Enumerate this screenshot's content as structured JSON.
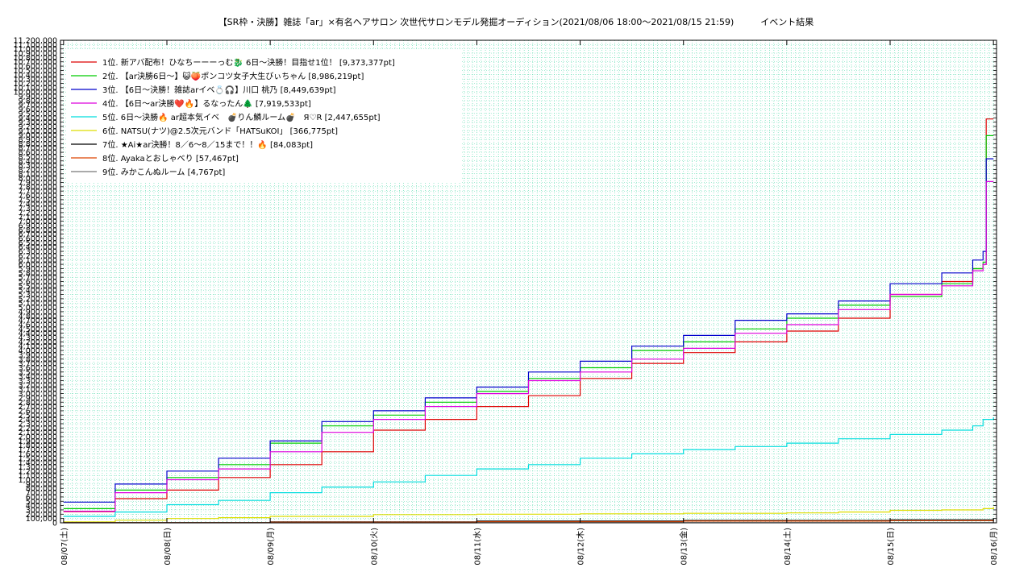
{
  "chart_data": {
    "type": "line",
    "title": "【SR枠・決勝】雑誌「ar」×有名ヘアサロン 次世代サロンモデル発掘オーディション(2021/08/06 18:00～2021/08/15 21:59)　　　イベント結果",
    "xlabel": "",
    "ylabel": "",
    "x_tick_labels": [
      "08/07(土)",
      "08/08(日)",
      "08/09(月)",
      "08/10(火)",
      "08/11(水)",
      "08/12(木)",
      "08/13(金)",
      "08/14(土)",
      "08/15(日)",
      "08/16(月)"
    ],
    "xlim": [
      -0.03,
      9.03
    ],
    "ylim": [
      0,
      11200000
    ],
    "y_tick_step": 100000,
    "grid": true,
    "legend": "top-left",
    "series": [
      {
        "name": "1位. 新アバ配布！ひなちーーーっむ🐉 6日～決勝！目指せ1位！ [9,373,377pt]",
        "color": "#dd0000",
        "points": [
          [
            0,
            260000
          ],
          [
            0.5,
            560000
          ],
          [
            1,
            760000
          ],
          [
            1.5,
            1050000
          ],
          [
            2,
            1350000
          ],
          [
            2.5,
            1650000
          ],
          [
            3,
            2150000
          ],
          [
            3.5,
            2400000
          ],
          [
            4,
            2700000
          ],
          [
            4.5,
            2950000
          ],
          [
            5,
            3350000
          ],
          [
            5.5,
            3700000
          ],
          [
            6,
            3950000
          ],
          [
            6.5,
            4200000
          ],
          [
            7,
            4450000
          ],
          [
            7.5,
            4750000
          ],
          [
            8,
            5300000
          ],
          [
            8.5,
            5600000
          ],
          [
            8.8,
            5900000
          ],
          [
            8.9,
            6000000
          ],
          [
            8.93,
            9373377
          ],
          [
            9,
            9373377
          ]
        ]
      },
      {
        "name": "2位. 【ar決勝6日〜】😺🍑ポンコツ女子大生びぃちゃん [8,986,219pt]",
        "color": "#00cc00",
        "points": [
          [
            0,
            330000
          ],
          [
            0.5,
            760000
          ],
          [
            1,
            1050000
          ],
          [
            1.5,
            1350000
          ],
          [
            2,
            1850000
          ],
          [
            2.5,
            2250000
          ],
          [
            3,
            2500000
          ],
          [
            3.5,
            2800000
          ],
          [
            4,
            3050000
          ],
          [
            4.5,
            3350000
          ],
          [
            5,
            3600000
          ],
          [
            5.5,
            4000000
          ],
          [
            6,
            4200000
          ],
          [
            6.5,
            4500000
          ],
          [
            7,
            4750000
          ],
          [
            7.5,
            5050000
          ],
          [
            8,
            5250000
          ],
          [
            8.5,
            5550000
          ],
          [
            8.8,
            5900000
          ],
          [
            8.9,
            6050000
          ],
          [
            8.93,
            8986219
          ],
          [
            9,
            8986219
          ]
        ]
      },
      {
        "name": "3位. 【6日〜決勝！雑誌arイベ💍🎧】川口 桃乃 [8,449,639pt]",
        "color": "#0000cc",
        "points": [
          [
            0,
            480000
          ],
          [
            0.5,
            900000
          ],
          [
            1,
            1200000
          ],
          [
            1.5,
            1500000
          ],
          [
            2,
            1900000
          ],
          [
            2.5,
            2350000
          ],
          [
            3,
            2600000
          ],
          [
            3.5,
            2900000
          ],
          [
            4,
            3150000
          ],
          [
            4.5,
            3500000
          ],
          [
            5,
            3750000
          ],
          [
            5.5,
            4100000
          ],
          [
            6,
            4350000
          ],
          [
            6.5,
            4700000
          ],
          [
            7,
            4850000
          ],
          [
            7.5,
            5150000
          ],
          [
            8,
            5550000
          ],
          [
            8.5,
            5800000
          ],
          [
            8.8,
            6100000
          ],
          [
            8.9,
            6300000
          ],
          [
            8.93,
            8449639
          ],
          [
            9,
            8449639
          ]
        ]
      },
      {
        "name": "4位. 【6日〜ar決勝❤️🔥】るなったん🌲 [7,919,533pt]",
        "color": "#dd00dd",
        "points": [
          [
            0,
            270000
          ],
          [
            0.5,
            700000
          ],
          [
            1,
            1000000
          ],
          [
            1.5,
            1250000
          ],
          [
            2,
            1650000
          ],
          [
            2.5,
            2100000
          ],
          [
            3,
            2400000
          ],
          [
            3.5,
            2700000
          ],
          [
            4,
            3000000
          ],
          [
            4.5,
            3300000
          ],
          [
            5,
            3500000
          ],
          [
            5.5,
            3800000
          ],
          [
            6,
            4050000
          ],
          [
            6.5,
            4400000
          ],
          [
            7,
            4600000
          ],
          [
            7.5,
            4950000
          ],
          [
            8,
            5300000
          ],
          [
            8.5,
            5500000
          ],
          [
            8.8,
            5850000
          ],
          [
            8.9,
            6000000
          ],
          [
            8.93,
            7919533
          ],
          [
            9,
            7919533
          ]
        ]
      },
      {
        "name": "5位. 6日〜決勝🔥 ar超本気イベ　💣りん鱗ルーム💣　Я♡R [2,447,655pt]",
        "color": "#00dddd",
        "points": [
          [
            0,
            150000
          ],
          [
            0.5,
            250000
          ],
          [
            1,
            420000
          ],
          [
            1.5,
            520000
          ],
          [
            2,
            700000
          ],
          [
            2.5,
            830000
          ],
          [
            3,
            950000
          ],
          [
            3.5,
            1100000
          ],
          [
            4,
            1250000
          ],
          [
            4.5,
            1350000
          ],
          [
            5,
            1500000
          ],
          [
            5.5,
            1600000
          ],
          [
            6,
            1700000
          ],
          [
            6.5,
            1770000
          ],
          [
            7,
            1850000
          ],
          [
            7.5,
            1950000
          ],
          [
            8,
            2050000
          ],
          [
            8.5,
            2150000
          ],
          [
            8.8,
            2250000
          ],
          [
            8.9,
            2400000
          ],
          [
            9,
            2447655
          ]
        ]
      },
      {
        "name": "6位. NATSU(ナツ)@2.5次元バンド「HATSuKOI」 [366,775pt]",
        "color": "#dddd00",
        "points": [
          [
            0,
            20000
          ],
          [
            0.5,
            60000
          ],
          [
            1,
            100000
          ],
          [
            1.5,
            120000
          ],
          [
            2,
            150000
          ],
          [
            3,
            190000
          ],
          [
            4,
            200000
          ],
          [
            5,
            210000
          ],
          [
            6,
            220000
          ],
          [
            7,
            230000
          ],
          [
            7.5,
            250000
          ],
          [
            8,
            290000
          ],
          [
            8.5,
            300000
          ],
          [
            8.9,
            330000
          ],
          [
            9,
            366775
          ]
        ]
      },
      {
        "name": "7位. ★Ai★ar決勝！8／6〜8／15まで！！🔥 [84,083pt]",
        "color": "#000000",
        "points": [
          [
            0,
            5000
          ],
          [
            2,
            20000
          ],
          [
            4,
            40000
          ],
          [
            6,
            55000
          ],
          [
            8,
            70000
          ],
          [
            9,
            84083
          ]
        ]
      },
      {
        "name": "8位. Ayakaとおしゃべり [57,467pt]",
        "color": "#dd4400",
        "points": [
          [
            0,
            3000
          ],
          [
            2,
            15000
          ],
          [
            4,
            25000
          ],
          [
            6,
            40000
          ],
          [
            8,
            50000
          ],
          [
            9,
            57467
          ]
        ]
      },
      {
        "name": "9位. みかこんぬルーム [4,767pt]",
        "color": "#777777",
        "points": [
          [
            0,
            500
          ],
          [
            4,
            2500
          ],
          [
            9,
            4767
          ]
        ]
      }
    ]
  }
}
